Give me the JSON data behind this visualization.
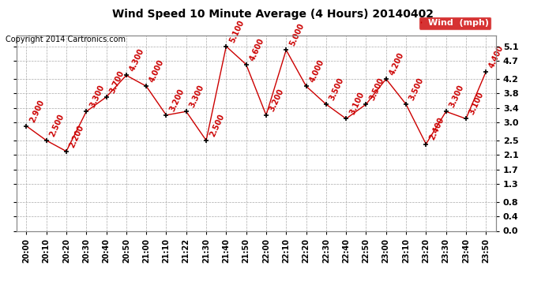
{
  "title": "Wind Speed 10 Minute Average (4 Hours) 20140402",
  "copyright": "Copyright 2014 Cartronics.com",
  "legend_label": "Wind  (mph)",
  "x_labels": [
    "20:00",
    "20:10",
    "20:20",
    "20:30",
    "20:40",
    "20:50",
    "21:00",
    "21:10",
    "21:22",
    "21:30",
    "21:40",
    "21:50",
    "22:00",
    "22:10",
    "22:20",
    "22:30",
    "22:40",
    "22:50",
    "23:00",
    "23:10",
    "23:20",
    "23:30",
    "23:40",
    "23:50"
  ],
  "y_values": [
    2.9,
    2.5,
    2.2,
    3.3,
    3.7,
    4.3,
    4.0,
    3.2,
    3.3,
    2.5,
    5.1,
    4.6,
    3.2,
    5.0,
    4.0,
    3.5,
    3.1,
    3.5,
    4.2,
    3.5,
    2.4,
    3.3,
    3.1,
    4.4
  ],
  "y_tick_vals": [
    0.0,
    0.4,
    0.8,
    1.3,
    1.7,
    2.1,
    2.5,
    3.0,
    3.4,
    3.8,
    4.2,
    4.7,
    5.1
  ],
  "ylim": [
    0.0,
    5.4
  ],
  "line_color": "#cc0000",
  "marker_color": "#000000",
  "label_color": "#cc0000",
  "grid_color": "#aaaaaa",
  "bg_color": "#ffffff",
  "legend_bg": "#cc0000",
  "legend_text_color": "#ffffff",
  "title_fontsize": 10,
  "copyright_fontsize": 7,
  "tick_fontsize": 8,
  "annotation_fontsize": 7
}
